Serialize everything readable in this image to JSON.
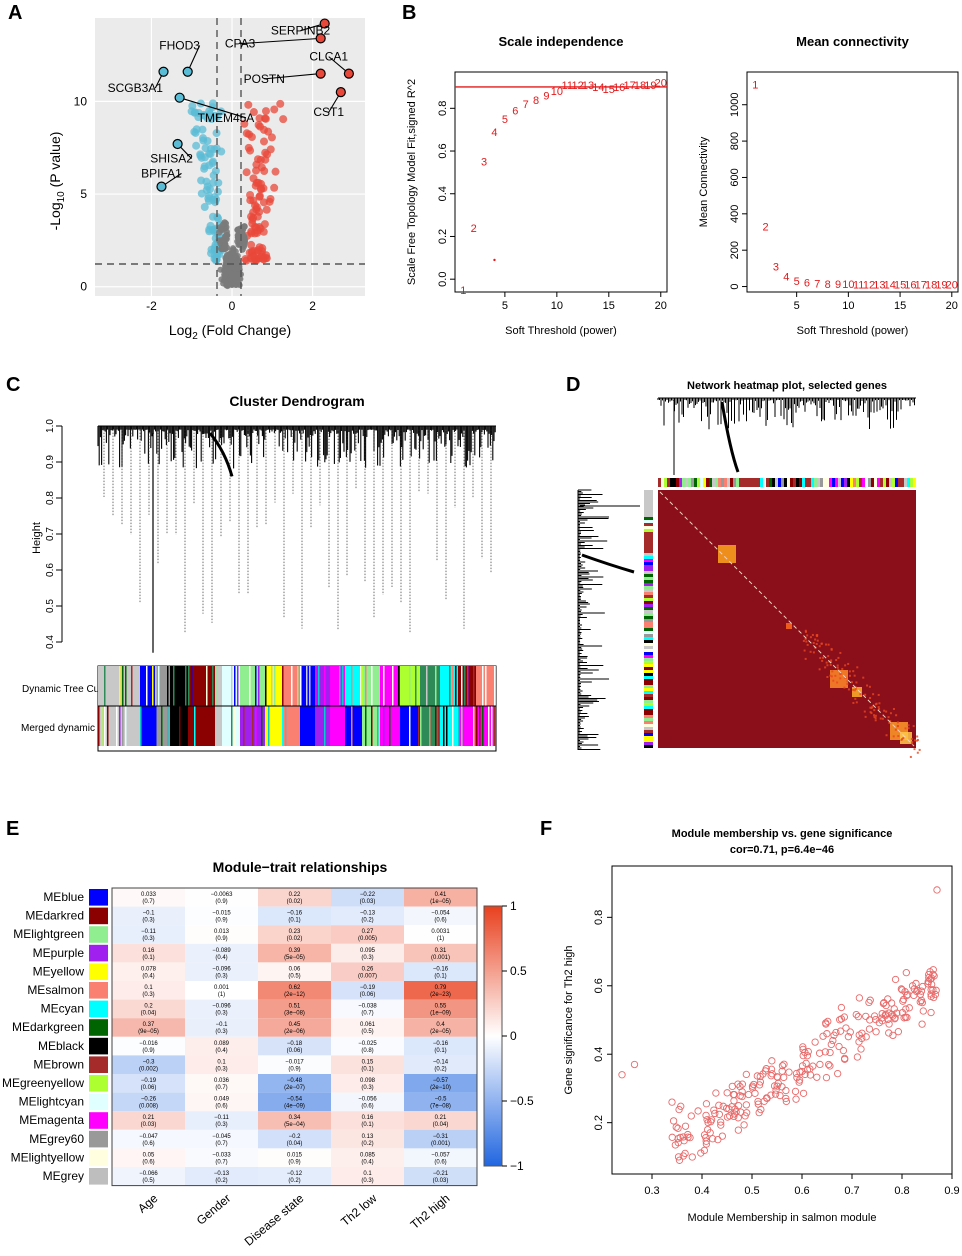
{
  "panels": {
    "a": {
      "letter": "A"
    },
    "b": {
      "letter": "B"
    },
    "c": {
      "letter": "C"
    },
    "d": {
      "letter": "D"
    },
    "e": {
      "letter": "E"
    },
    "f": {
      "letter": "F"
    }
  },
  "volcano": {
    "ylabel_pre": "-Log",
    "ylabel_sub": "10",
    "ylabel_post": " (P value)",
    "xlabel_pre": "Log",
    "xlabel_sub": "2",
    "xlabel_post": " (Fold Change)",
    "xticks": [
      "-2",
      "0",
      "2"
    ],
    "yticks": [
      "0",
      "5",
      "10"
    ],
    "colors": {
      "down": "#5bbcd6",
      "up": "#e8483a",
      "ns": "#7a7a7a"
    },
    "labels": [
      {
        "text": "FHOD3"
      },
      {
        "text": "SCGB3A1"
      },
      {
        "text": "TMEM45A"
      },
      {
        "text": "SHISA2"
      },
      {
        "text": "BPIFA1"
      },
      {
        "text": "SERPINB2"
      },
      {
        "text": "CPA3"
      },
      {
        "text": "CLCA1"
      },
      {
        "text": "POSTN"
      },
      {
        "text": "CST1"
      }
    ]
  },
  "chart_data": [
    {
      "type": "scatter",
      "title": "Scale independence",
      "xlabel": "Soft Threshold (power)",
      "ylabel": "Scale Free Topology Model Fit,signed R^2",
      "x": [
        1,
        2,
        3,
        4,
        5,
        6,
        7,
        8,
        9,
        10,
        11,
        12,
        13,
        14,
        15,
        16,
        17,
        18,
        19,
        20
      ],
      "y": [
        -0.05,
        0.24,
        0.55,
        0.69,
        0.75,
        0.79,
        0.82,
        0.84,
        0.86,
        0.88,
        0.91,
        0.91,
        0.91,
        0.9,
        0.89,
        0.9,
        0.91,
        0.91,
        0.91,
        0.92
      ],
      "xticks": [
        "5",
        "10",
        "15",
        "20"
      ],
      "yticks": [
        "0.0",
        "0.2",
        "0.4",
        "0.6",
        "0.8"
      ],
      "threshold": 0.9
    },
    {
      "type": "scatter",
      "title": "Mean connectivity",
      "xlabel": "Soft Threshold (power)",
      "ylabel": "Mean Connectivity",
      "x": [
        1,
        2,
        3,
        4,
        5,
        6,
        7,
        8,
        9,
        10,
        11,
        12,
        13,
        14,
        15,
        16,
        17,
        18,
        19,
        20
      ],
      "y": [
        1110,
        330,
        110,
        55,
        30,
        22,
        18,
        15,
        14,
        13,
        12,
        12,
        12,
        12,
        12,
        12,
        12,
        12,
        12,
        12
      ],
      "xticks": [
        "5",
        "10",
        "15",
        "20"
      ],
      "yticks": [
        "0",
        "200",
        "400",
        "600",
        "800",
        "1000"
      ]
    },
    {
      "type": "heatmap",
      "title": "Module−trait relationships",
      "columns": [
        "Age",
        "Gender",
        "Disease state",
        "Th2 low",
        "Th2 high"
      ],
      "rows": [
        {
          "name": "MEblue",
          "color": "#0000ff",
          "cells": [
            [
              "0.033",
              "(0.7)"
            ],
            [
              "−0.0063",
              "(0.9)"
            ],
            [
              "0.22",
              "(0.02)"
            ],
            [
              "−0.22",
              "(0.03)"
            ],
            [
              "0.41",
              "(1e−05)"
            ]
          ],
          "v": [
            0.033,
            -0.006,
            0.22,
            -0.22,
            0.41
          ]
        },
        {
          "name": "MEdarkred",
          "color": "#8b0000",
          "cells": [
            [
              "−0.1",
              "(0.3)"
            ],
            [
              "−0.015",
              "(0.9)"
            ],
            [
              "−0.16",
              "(0.1)"
            ],
            [
              "−0.13",
              "(0.2)"
            ],
            [
              "−0.054",
              "(0.6)"
            ]
          ],
          "v": [
            -0.1,
            -0.015,
            -0.16,
            -0.13,
            -0.054
          ]
        },
        {
          "name": "MElightgreen",
          "color": "#90ee90",
          "cells": [
            [
              "−0.11",
              "(0.3)"
            ],
            [
              "0.013",
              "(0.9)"
            ],
            [
              "0.23",
              "(0.02)"
            ],
            [
              "0.27",
              "(0.005)"
            ],
            [
              "0.0031",
              "(1)"
            ]
          ],
          "v": [
            -0.11,
            0.013,
            0.23,
            0.27,
            0.003
          ]
        },
        {
          "name": "MEpurple",
          "color": "#a020f0",
          "cells": [
            [
              "0.16",
              "(0.1)"
            ],
            [
              "−0.089",
              "(0.4)"
            ],
            [
              "0.39",
              "(5e−05)"
            ],
            [
              "0.095",
              "(0.3)"
            ],
            [
              "0.31",
              "(0.001)"
            ]
          ],
          "v": [
            0.16,
            -0.089,
            0.39,
            0.095,
            0.31
          ]
        },
        {
          "name": "MEyellow",
          "color": "#ffff00",
          "cells": [
            [
              "0.078",
              "(0.4)"
            ],
            [
              "−0.096",
              "(0.3)"
            ],
            [
              "0.06",
              "(0.5)"
            ],
            [
              "0.26",
              "(0.007)"
            ],
            [
              "−0.16",
              "(0.1)"
            ]
          ],
          "v": [
            0.078,
            -0.096,
            0.06,
            0.26,
            -0.16
          ]
        },
        {
          "name": "MEsalmon",
          "color": "#fa8072",
          "cells": [
            [
              "0.1",
              "(0.3)"
            ],
            [
              "0.001",
              "(1)"
            ],
            [
              "0.62",
              "(2e−12)"
            ],
            [
              "−0.19",
              "(0.06)"
            ],
            [
              "0.79",
              "(2e−23)"
            ]
          ],
          "v": [
            0.1,
            0.001,
            0.62,
            -0.19,
            0.79
          ]
        },
        {
          "name": "MEcyan",
          "color": "#00ffff",
          "cells": [
            [
              "0.2",
              "(0.04)"
            ],
            [
              "−0.096",
              "(0.3)"
            ],
            [
              "0.51",
              "(3e−08)"
            ],
            [
              "−0.038",
              "(0.7)"
            ],
            [
              "0.55",
              "(1e−09)"
            ]
          ],
          "v": [
            0.2,
            -0.096,
            0.51,
            -0.038,
            0.55
          ]
        },
        {
          "name": "MEdarkgreen",
          "color": "#006400",
          "cells": [
            [
              "0.37",
              "(9e−05)"
            ],
            [
              "−0.1",
              "(0.3)"
            ],
            [
              "0.45",
              "(2e−06)"
            ],
            [
              "0.061",
              "(0.5)"
            ],
            [
              "0.4",
              "(2e−05)"
            ]
          ],
          "v": [
            0.37,
            -0.1,
            0.45,
            0.061,
            0.4
          ]
        },
        {
          "name": "MEblack",
          "color": "#000000",
          "cells": [
            [
              "−0.016",
              "(0.9)"
            ],
            [
              "0.089",
              "(0.4)"
            ],
            [
              "−0.18",
              "(0.06)"
            ],
            [
              "−0.025",
              "(0.8)"
            ],
            [
              "−0.16",
              "(0.1)"
            ]
          ],
          "v": [
            -0.016,
            0.089,
            -0.18,
            -0.025,
            -0.16
          ]
        },
        {
          "name": "MEbrown",
          "color": "#a52a2a",
          "cells": [
            [
              "−0.3",
              "(0.002)"
            ],
            [
              "0.1",
              "(0.3)"
            ],
            [
              "−0.017",
              "(0.9)"
            ],
            [
              "0.15",
              "(0.1)"
            ],
            [
              "−0.14",
              "(0.2)"
            ]
          ],
          "v": [
            -0.3,
            0.1,
            -0.017,
            0.15,
            -0.14
          ]
        },
        {
          "name": "MEgreenyellow",
          "color": "#adff2f",
          "cells": [
            [
              "−0.19",
              "(0.06)"
            ],
            [
              "0.036",
              "(0.7)"
            ],
            [
              "−0.48",
              "(2e−07)"
            ],
            [
              "0.098",
              "(0.3)"
            ],
            [
              "−0.57",
              "(2e−10)"
            ]
          ],
          "v": [
            -0.19,
            0.036,
            -0.48,
            0.098,
            -0.57
          ]
        },
        {
          "name": "MElightcyan",
          "color": "#e0ffff",
          "cells": [
            [
              "−0.26",
              "(0.008)"
            ],
            [
              "0.049",
              "(0.6)"
            ],
            [
              "−0.54",
              "(4e−09)"
            ],
            [
              "−0.056",
              "(0.6)"
            ],
            [
              "−0.5",
              "(7e−08)"
            ]
          ],
          "v": [
            -0.26,
            0.049,
            -0.54,
            -0.056,
            -0.5
          ]
        },
        {
          "name": "MEmagenta",
          "color": "#ff00ff",
          "cells": [
            [
              "0.21",
              "(0.03)"
            ],
            [
              "−0.11",
              "(0.3)"
            ],
            [
              "0.34",
              "(5e−04)"
            ],
            [
              "0.16",
              "(0.1)"
            ],
            [
              "0.21",
              "(0.04)"
            ]
          ],
          "v": [
            0.21,
            -0.11,
            0.34,
            0.16,
            0.21
          ]
        },
        {
          "name": "MEgrey60",
          "color": "#999999",
          "cells": [
            [
              "−0.047",
              "(0.6)"
            ],
            [
              "−0.045",
              "(0.7)"
            ],
            [
              "−0.2",
              "(0.04)"
            ],
            [
              "0.13",
              "(0.2)"
            ],
            [
              "−0.31",
              "(0.001)"
            ]
          ],
          "v": [
            -0.047,
            -0.045,
            -0.2,
            0.13,
            -0.31
          ]
        },
        {
          "name": "MElightyellow",
          "color": "#ffffe0",
          "cells": [
            [
              "0.05",
              "(0.6)"
            ],
            [
              "−0.033",
              "(0.7)"
            ],
            [
              "0.015",
              "(0.9)"
            ],
            [
              "0.085",
              "(0.4)"
            ],
            [
              "−0.057",
              "(0.6)"
            ]
          ],
          "v": [
            0.05,
            -0.033,
            0.015,
            0.085,
            -0.057
          ]
        },
        {
          "name": "MEgrey",
          "color": "#bebebe",
          "cells": [
            [
              "−0.066",
              "(0.5)"
            ],
            [
              "−0.13",
              "(0.2)"
            ],
            [
              "−0.12",
              "(0.2)"
            ],
            [
              "0.1",
              "(0.3)"
            ],
            [
              "−0.21",
              "(0.03)"
            ]
          ],
          "v": [
            -0.066,
            -0.13,
            -0.12,
            0.1,
            -0.21
          ]
        }
      ],
      "scale_ticks": [
        "1",
        "0.5",
        "0",
        "−0.5",
        "−1"
      ],
      "colors": {
        "neg": "#2166e0",
        "pos": "#e8401e",
        "mid": "#ffffff"
      }
    },
    {
      "type": "scatter",
      "title": "Module membership vs. gene significance",
      "subtitle": "cor=0.71, p=6.4e−46",
      "xlabel": "Module Membership in salmon module",
      "ylabel": "Gene significance for  Th2 high",
      "xlim": [
        0.22,
        0.9
      ],
      "ylim": [
        0.05,
        0.95
      ],
      "xticks": [
        "0.3",
        "0.4",
        "0.5",
        "0.6",
        "0.7",
        "0.8",
        "0.9"
      ],
      "yticks": [
        "0.2",
        "0.4",
        "0.6",
        "0.8"
      ],
      "point_color": "#e86a6a",
      "n_points": 260
    }
  ],
  "dendrogram": {
    "title": "Cluster Dendrogram",
    "ylabel": "Height",
    "yticks": [
      "1.0",
      "0.9",
      "0.8",
      "0.7",
      "0.6",
      "0.5",
      "0.4"
    ],
    "row1": "Dynamic Tree Cut",
    "row2": "Merged dynamic"
  },
  "network": {
    "title": "Network heatmap plot, selected genes"
  }
}
